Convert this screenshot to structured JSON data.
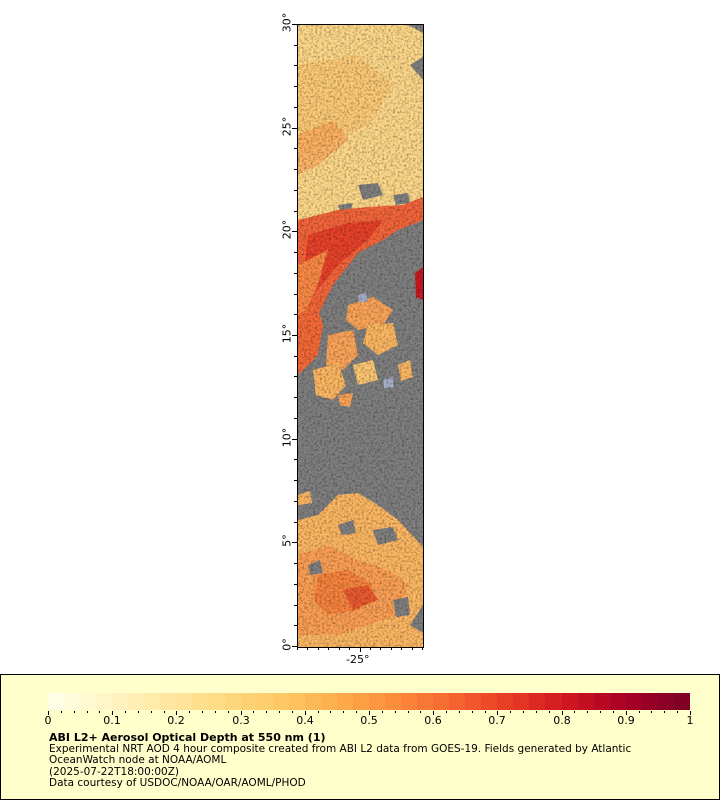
{
  "map": {
    "lat_labels": [
      "0°",
      "5°",
      "10°",
      "15°",
      "20°",
      "25°",
      "30°"
    ],
    "lon_labels": [
      "-25°"
    ],
    "background_color": "#808080"
  },
  "legend": {
    "title": "ABI L2+ Aerosol Optical Depth at 550 nm (1)",
    "line1": "Experimental NRT AOD 4 hour composite created from ABI L2 data from GOES-19. Fields generated by Atlantic",
    "line2": "OceanWatch node at NOAA/AOML",
    "line3": "(2025-07-22T18:00:00Z)",
    "line4": "Data courtesy of USDOC/NOAA/OAR/AOML/PHOD",
    "colorbar_labels": [
      "0",
      "0.1",
      "0.2",
      "0.3",
      "0.4",
      "0.5",
      "0.6",
      "0.7",
      "0.8",
      "0.9",
      "1"
    ],
    "colorbar_colors": [
      "#ffffe6",
      "#fff4c2",
      "#ffe7a0",
      "#fed97f",
      "#fec863",
      "#fdab4b",
      "#fc8a3a",
      "#f66430",
      "#e83a25",
      "#cf1620",
      "#a80026",
      "#800026"
    ]
  }
}
